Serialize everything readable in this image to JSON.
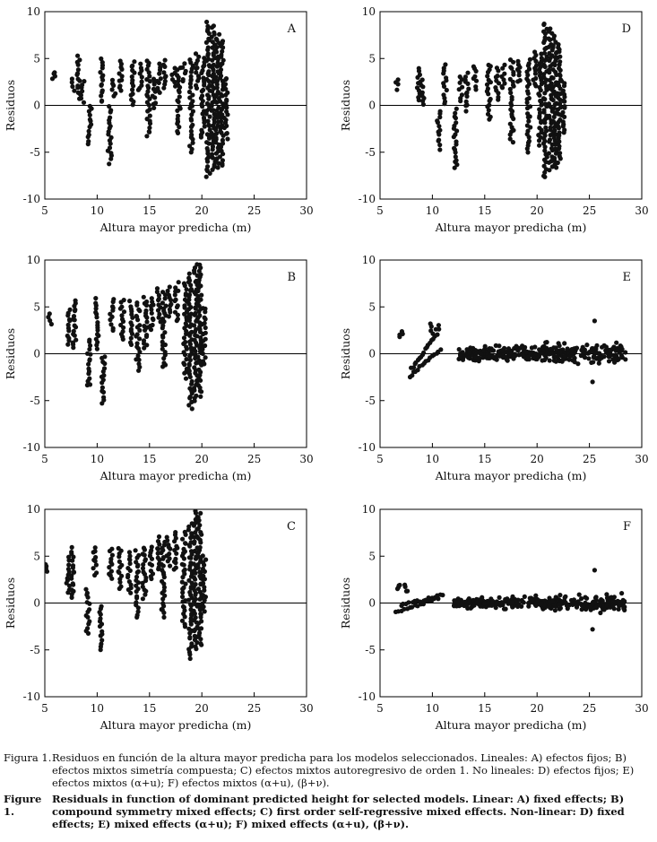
{
  "chart_data": [
    {
      "type": "scatter",
      "panel_label": "A",
      "xlabel": "Altura mayor predicha (m)",
      "ylabel": "Residuos",
      "xlim": [
        5,
        30
      ],
      "ylim": [
        -10,
        10
      ],
      "xticks": [
        5,
        10,
        15,
        20,
        25,
        30
      ],
      "yticks": [
        -10,
        -5,
        0,
        5,
        10
      ],
      "reference_line": 0,
      "clusters": [
        {
          "x": 5.8,
          "y": [
            2.8,
            3.6
          ]
        },
        {
          "x": 7.7,
          "y": [
            1.5,
            2.8
          ]
        },
        {
          "x": 8.2,
          "y": [
            0.8,
            5.2
          ]
        },
        {
          "x": 8.6,
          "y": [
            0.3,
            2.6
          ]
        },
        {
          "x": 9.3,
          "y": [
            -4.1,
            0.0
          ]
        },
        {
          "x": 10.4,
          "y": [
            0.3,
            5.0
          ]
        },
        {
          "x": 11.2,
          "y": [
            -6.1,
            -0.2
          ]
        },
        {
          "x": 11.6,
          "y": [
            1.0,
            2.8
          ]
        },
        {
          "x": 12.2,
          "y": [
            1.5,
            4.8
          ]
        },
        {
          "x": 13.4,
          "y": [
            0.0,
            4.7
          ]
        },
        {
          "x": 14.1,
          "y": [
            1.5,
            4.4
          ]
        },
        {
          "x": 14.9,
          "y": [
            -3.3,
            4.8
          ]
        },
        {
          "x": 15.4,
          "y": [
            -0.3,
            2.8
          ]
        },
        {
          "x": 15.9,
          "y": [
            1.3,
            4.3
          ]
        },
        {
          "x": 16.5,
          "y": [
            1.8,
            4.7
          ]
        },
        {
          "x": 17.3,
          "y": [
            2.0,
            4.0
          ]
        },
        {
          "x": 17.8,
          "y": [
            -3.0,
            4.0
          ]
        },
        {
          "x": 18.3,
          "y": [
            2.5,
            4.5
          ]
        },
        {
          "x": 19.0,
          "y": [
            -5.0,
            4.8
          ]
        },
        {
          "x": 19.6,
          "y": [
            1.8,
            5.5
          ]
        },
        {
          "x": 20.1,
          "y": [
            -3.5,
            5.0
          ]
        },
        {
          "x": 20.6,
          "y": [
            -7.7,
            8.8
          ]
        },
        {
          "x": 21.1,
          "y": [
            -7.0,
            8.5
          ]
        },
        {
          "x": 21.5,
          "y": [
            -6.5,
            7.5
          ]
        },
        {
          "x": 21.9,
          "y": [
            -6.5,
            7.0
          ]
        },
        {
          "x": 22.3,
          "y": [
            -3.5,
            3.0
          ]
        }
      ]
    },
    {
      "type": "scatter",
      "panel_label": "D",
      "xlabel": "Altura mayor predicha (m)",
      "ylabel": "Residuos",
      "xlim": [
        5,
        30
      ],
      "ylim": [
        -10,
        10
      ],
      "xticks": [
        5,
        10,
        15,
        20,
        25,
        30
      ],
      "yticks": [
        -10,
        -5,
        0,
        5,
        10
      ],
      "reference_line": 0,
      "clusters": [
        {
          "x": 6.6,
          "y": [
            1.8,
            2.8
          ]
        },
        {
          "x": 8.7,
          "y": [
            0.5,
            4.0
          ]
        },
        {
          "x": 9.1,
          "y": [
            0.0,
            2.6
          ]
        },
        {
          "x": 10.6,
          "y": [
            -4.6,
            -0.5
          ]
        },
        {
          "x": 11.2,
          "y": [
            0.2,
            4.4
          ]
        },
        {
          "x": 12.2,
          "y": [
            -6.8,
            -0.5
          ]
        },
        {
          "x": 12.7,
          "y": [
            0.5,
            3.0
          ]
        },
        {
          "x": 13.3,
          "y": [
            -0.5,
            3.5
          ]
        },
        {
          "x": 14.1,
          "y": [
            1.8,
            4.2
          ]
        },
        {
          "x": 15.4,
          "y": [
            -1.5,
            4.4
          ]
        },
        {
          "x": 16.2,
          "y": [
            0.6,
            3.9
          ]
        },
        {
          "x": 16.8,
          "y": [
            1.8,
            4.2
          ]
        },
        {
          "x": 17.6,
          "y": [
            -3.8,
            4.8
          ]
        },
        {
          "x": 18.2,
          "y": [
            2.4,
            4.8
          ]
        },
        {
          "x": 19.2,
          "y": [
            -5.0,
            4.8
          ]
        },
        {
          "x": 19.8,
          "y": [
            2.0,
            5.6
          ]
        },
        {
          "x": 20.3,
          "y": [
            -4.2,
            5.4
          ]
        },
        {
          "x": 20.8,
          "y": [
            -7.7,
            8.8
          ]
        },
        {
          "x": 21.3,
          "y": [
            -6.8,
            8.2
          ]
        },
        {
          "x": 21.7,
          "y": [
            -6.5,
            7.4
          ]
        },
        {
          "x": 22.1,
          "y": [
            -6.0,
            6.6
          ]
        },
        {
          "x": 22.5,
          "y": [
            -3.0,
            2.6
          ]
        }
      ]
    },
    {
      "type": "scatter",
      "panel_label": "B",
      "xlabel": "Altura mayor predicha (m)",
      "ylabel": "Residuos",
      "xlim": [
        5,
        30
      ],
      "ylim": [
        -10,
        10
      ],
      "xticks": [
        5,
        10,
        15,
        20,
        25,
        30
      ],
      "yticks": [
        -10,
        -5,
        0,
        5,
        10
      ],
      "reference_line": 0,
      "clusters": [
        {
          "x": 5.5,
          "y": [
            3.3,
            4.2
          ]
        },
        {
          "x": 7.3,
          "y": [
            1.0,
            4.8
          ]
        },
        {
          "x": 7.8,
          "y": [
            0.5,
            5.8
          ]
        },
        {
          "x": 9.2,
          "y": [
            -3.5,
            1.5
          ]
        },
        {
          "x": 10.0,
          "y": [
            0.5,
            5.8
          ]
        },
        {
          "x": 10.6,
          "y": [
            -5.2,
            -0.2
          ]
        },
        {
          "x": 11.4,
          "y": [
            2.5,
            5.8
          ]
        },
        {
          "x": 12.4,
          "y": [
            1.5,
            5.8
          ]
        },
        {
          "x": 13.2,
          "y": [
            1.0,
            5.5
          ]
        },
        {
          "x": 13.9,
          "y": [
            -1.8,
            5.5
          ]
        },
        {
          "x": 14.6,
          "y": [
            0.5,
            6.0
          ]
        },
        {
          "x": 15.2,
          "y": [
            2.5,
            6.0
          ]
        },
        {
          "x": 15.9,
          "y": [
            3.5,
            7.0
          ]
        },
        {
          "x": 16.4,
          "y": [
            -1.5,
            6.5
          ]
        },
        {
          "x": 16.9,
          "y": [
            4.0,
            7.0
          ]
        },
        {
          "x": 17.6,
          "y": [
            3.5,
            7.5
          ]
        },
        {
          "x": 18.4,
          "y": [
            -2.5,
            7.5
          ]
        },
        {
          "x": 18.9,
          "y": [
            -5.8,
            8.5
          ]
        },
        {
          "x": 19.4,
          "y": [
            -5.0,
            9.5
          ]
        },
        {
          "x": 19.8,
          "y": [
            -4.5,
            9.5
          ]
        },
        {
          "x": 20.2,
          "y": [
            -1.0,
            5.0
          ]
        }
      ]
    },
    {
      "type": "scatter",
      "panel_label": "E",
      "xlabel": "Altura mayor predicha (m)",
      "ylabel": "Residuos",
      "xlim": [
        5,
        30
      ],
      "ylim": [
        -10,
        10
      ],
      "xticks": [
        5,
        10,
        15,
        20,
        25,
        30
      ],
      "yticks": [
        -10,
        -5,
        0,
        5,
        10
      ],
      "reference_line": 0,
      "clusters": [
        {
          "x": 7.0,
          "y": [
            1.8,
            2.3
          ]
        },
        {
          "x": 9.9,
          "y": [
            2.0,
            3.2
          ]
        },
        {
          "x": 10.5,
          "y": [
            2.2,
            3.0
          ]
        }
      ],
      "trend_lines": [
        {
          "x": [
            7.8,
            10.8
          ],
          "y": [
            -2.4,
            0.4
          ]
        },
        {
          "x": [
            8.0,
            10.2
          ],
          "y": [
            -1.6,
            1.8
          ]
        }
      ],
      "band": {
        "xrange": [
          12.5,
          28.5
        ],
        "y_center": 0,
        "y_spread": 1.8,
        "y_extreme": [
          -3.0,
          3.5
        ]
      }
    },
    {
      "type": "scatter",
      "panel_label": "C",
      "xlabel": "Altura mayor predicha (m)",
      "ylabel": "Residuos",
      "xlim": [
        5,
        30
      ],
      "ylim": [
        -10,
        10
      ],
      "xticks": [
        5,
        10,
        15,
        20,
        25,
        30
      ],
      "yticks": [
        -10,
        -5,
        0,
        5,
        10
      ],
      "reference_line": 0,
      "clusters": [
        {
          "x": 5.2,
          "y": [
            3.3,
            4.2
          ]
        },
        {
          "x": 7.2,
          "y": [
            1.0,
            4.8
          ]
        },
        {
          "x": 7.7,
          "y": [
            0.5,
            5.8
          ]
        },
        {
          "x": 9.1,
          "y": [
            -3.3,
            1.5
          ]
        },
        {
          "x": 9.8,
          "y": [
            3.0,
            6.0
          ]
        },
        {
          "x": 10.4,
          "y": [
            -5.0,
            -0.2
          ]
        },
        {
          "x": 11.3,
          "y": [
            2.5,
            5.8
          ]
        },
        {
          "x": 12.2,
          "y": [
            1.5,
            5.8
          ]
        },
        {
          "x": 13.1,
          "y": [
            1.0,
            5.5
          ]
        },
        {
          "x": 13.8,
          "y": [
            -1.5,
            5.5
          ]
        },
        {
          "x": 14.5,
          "y": [
            0.5,
            6.0
          ]
        },
        {
          "x": 15.2,
          "y": [
            2.5,
            6.0
          ]
        },
        {
          "x": 15.8,
          "y": [
            3.5,
            7.0
          ]
        },
        {
          "x": 16.3,
          "y": [
            -1.5,
            6.5
          ]
        },
        {
          "x": 16.8,
          "y": [
            4.0,
            7.0
          ]
        },
        {
          "x": 17.5,
          "y": [
            3.5,
            7.5
          ]
        },
        {
          "x": 18.3,
          "y": [
            -2.5,
            7.5
          ]
        },
        {
          "x": 18.9,
          "y": [
            -5.8,
            8.5
          ]
        },
        {
          "x": 19.4,
          "y": [
            -5.0,
            9.8
          ]
        },
        {
          "x": 19.8,
          "y": [
            -4.5,
            9.5
          ]
        },
        {
          "x": 20.2,
          "y": [
            -1.0,
            5.0
          ]
        }
      ]
    },
    {
      "type": "scatter",
      "panel_label": "F",
      "xlabel": "Altura mayor predicha (m)",
      "ylabel": "Residuos",
      "xlim": [
        5,
        30
      ],
      "ylim": [
        -10,
        10
      ],
      "xticks": [
        5,
        10,
        15,
        20,
        25,
        30
      ],
      "yticks": [
        -10,
        -5,
        0,
        5,
        10
      ],
      "reference_line": 0,
      "clusters": [
        {
          "x": 6.8,
          "y": [
            1.5,
            2.0
          ]
        },
        {
          "x": 7.5,
          "y": [
            1.2,
            1.8
          ]
        }
      ],
      "trend_lines": [
        {
          "x": [
            6.5,
            10.5
          ],
          "y": [
            -1.0,
            0.5
          ]
        },
        {
          "x": [
            7.0,
            11.0
          ],
          "y": [
            -0.3,
            0.9
          ]
        }
      ],
      "band": {
        "xrange": [
          12.0,
          28.5
        ],
        "y_center": 0,
        "y_spread": 1.3,
        "y_extreme": [
          -2.8,
          3.5
        ]
      }
    }
  ],
  "caption": {
    "es_label": "Figura 1.",
    "es_text": "Residuos en función de la altura mayor predicha para los modelos seleccionados. Lineales: A) efectos fijos; B) efectos mixtos simetría compuesta; C) efectos mixtos autoregresivo de orden 1. No lineales: D) efectos fijos; E) efectos mixtos (α+u); F) efectos mixtos (α+u), (β+ν).",
    "en_label": "Figure 1.",
    "en_text": "Residuals in function of dominant predicted height for selected models. Linear: A) fixed effects; B) compound symmetry mixed effects; C) first order self-regressive mixed effects. Non-linear: D) fixed effects; E) mixed effects (α+u); F) mixed effects (α+u), (β+ν)."
  }
}
